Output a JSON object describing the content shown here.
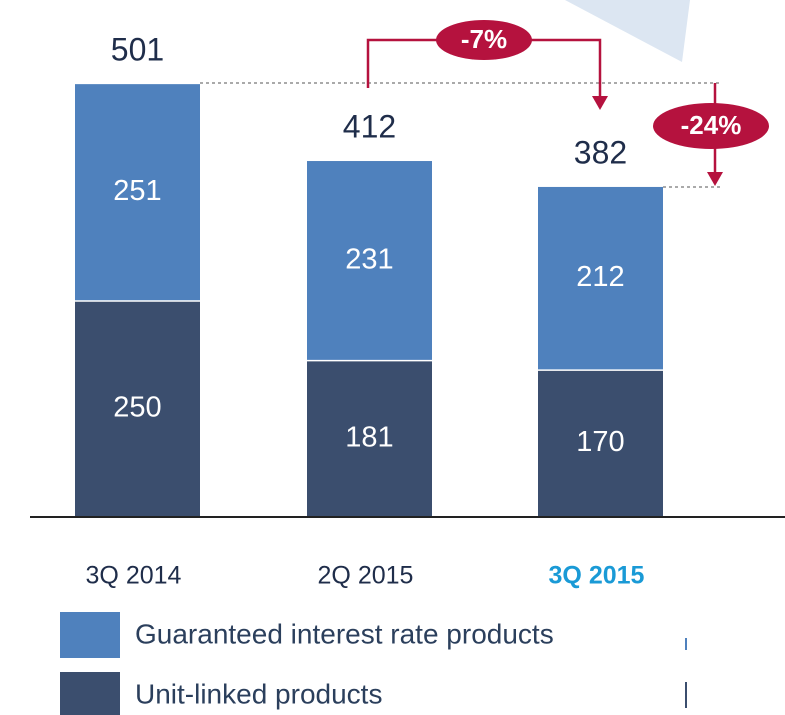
{
  "chart_data": {
    "type": "stacked-bar",
    "categories": [
      "3Q 2014",
      "2Q 2015",
      "3Q 2015"
    ],
    "highlight_index": 2,
    "highlight_color": "#1a9ad6",
    "series": [
      {
        "name": "Guaranteed interest rate products",
        "color": "#4f81bd",
        "values": [
          251,
          231,
          212
        ]
      },
      {
        "name": "Unit-linked products",
        "color": "#3b4e6e",
        "values": [
          250,
          181,
          170
        ]
      }
    ],
    "totals": [
      501,
      412,
      382
    ],
    "annotations": [
      "-7%",
      "-24%"
    ],
    "annotation_color": "#b5123e"
  }
}
